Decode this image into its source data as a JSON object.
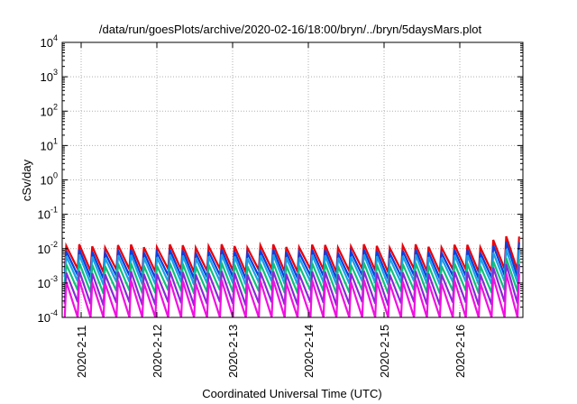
{
  "chart_data": {
    "type": "line",
    "title": "/data/run/goesPlots/archive/2020-02-16/18:00/bryn/../bryn/5daysMars.plot",
    "xlabel": "Coordinated Universal Time (UTC)",
    "ylabel": "cSv/day",
    "yscale": "log",
    "ylim": [
      0.0001,
      10000
    ],
    "xlim": [
      "2020-02-10 18:00",
      "2020-02-16 20:00"
    ],
    "y_ticks": [
      {
        "base": "10",
        "exp": "-4"
      },
      {
        "base": "10",
        "exp": "-3"
      },
      {
        "base": "10",
        "exp": "-2"
      },
      {
        "base": "10",
        "exp": "-1"
      },
      {
        "base": "10",
        "exp": "0"
      },
      {
        "base": "10",
        "exp": "1"
      },
      {
        "base": "10",
        "exp": "2"
      },
      {
        "base": "10",
        "exp": "3"
      },
      {
        "base": "10",
        "exp": "4"
      }
    ],
    "x_ticks": [
      "2020-2-11",
      "2020-2-12",
      "2020-2-13",
      "2020-2-14",
      "2020-2-15",
      "2020-2-16"
    ],
    "grid": true,
    "legend": "none",
    "series": [
      {
        "color": "#e8000b",
        "peak_low": 0.012,
        "peak_high": 0.022,
        "trough": 0.0023
      },
      {
        "color": "#0a3fe0",
        "peak_low": 0.0085,
        "peak_high": 0.015,
        "trough": 0.0015
      },
      {
        "color": "#1aa2e6",
        "peak_low": 0.006,
        "peak_high": 0.009,
        "trough": 0.001
      },
      {
        "color": "#10c07a",
        "peak_low": 0.0035,
        "peak_high": 0.005,
        "trough": 0.00055
      },
      {
        "color": "#8a28d8",
        "peak_low": 0.002,
        "peak_high": 0.0034,
        "trough": 0.00025
      },
      {
        "color": "#f010e0",
        "peak_low": 0.0011,
        "peak_high": 0.0018,
        "trough": 8e-05
      }
    ]
  }
}
